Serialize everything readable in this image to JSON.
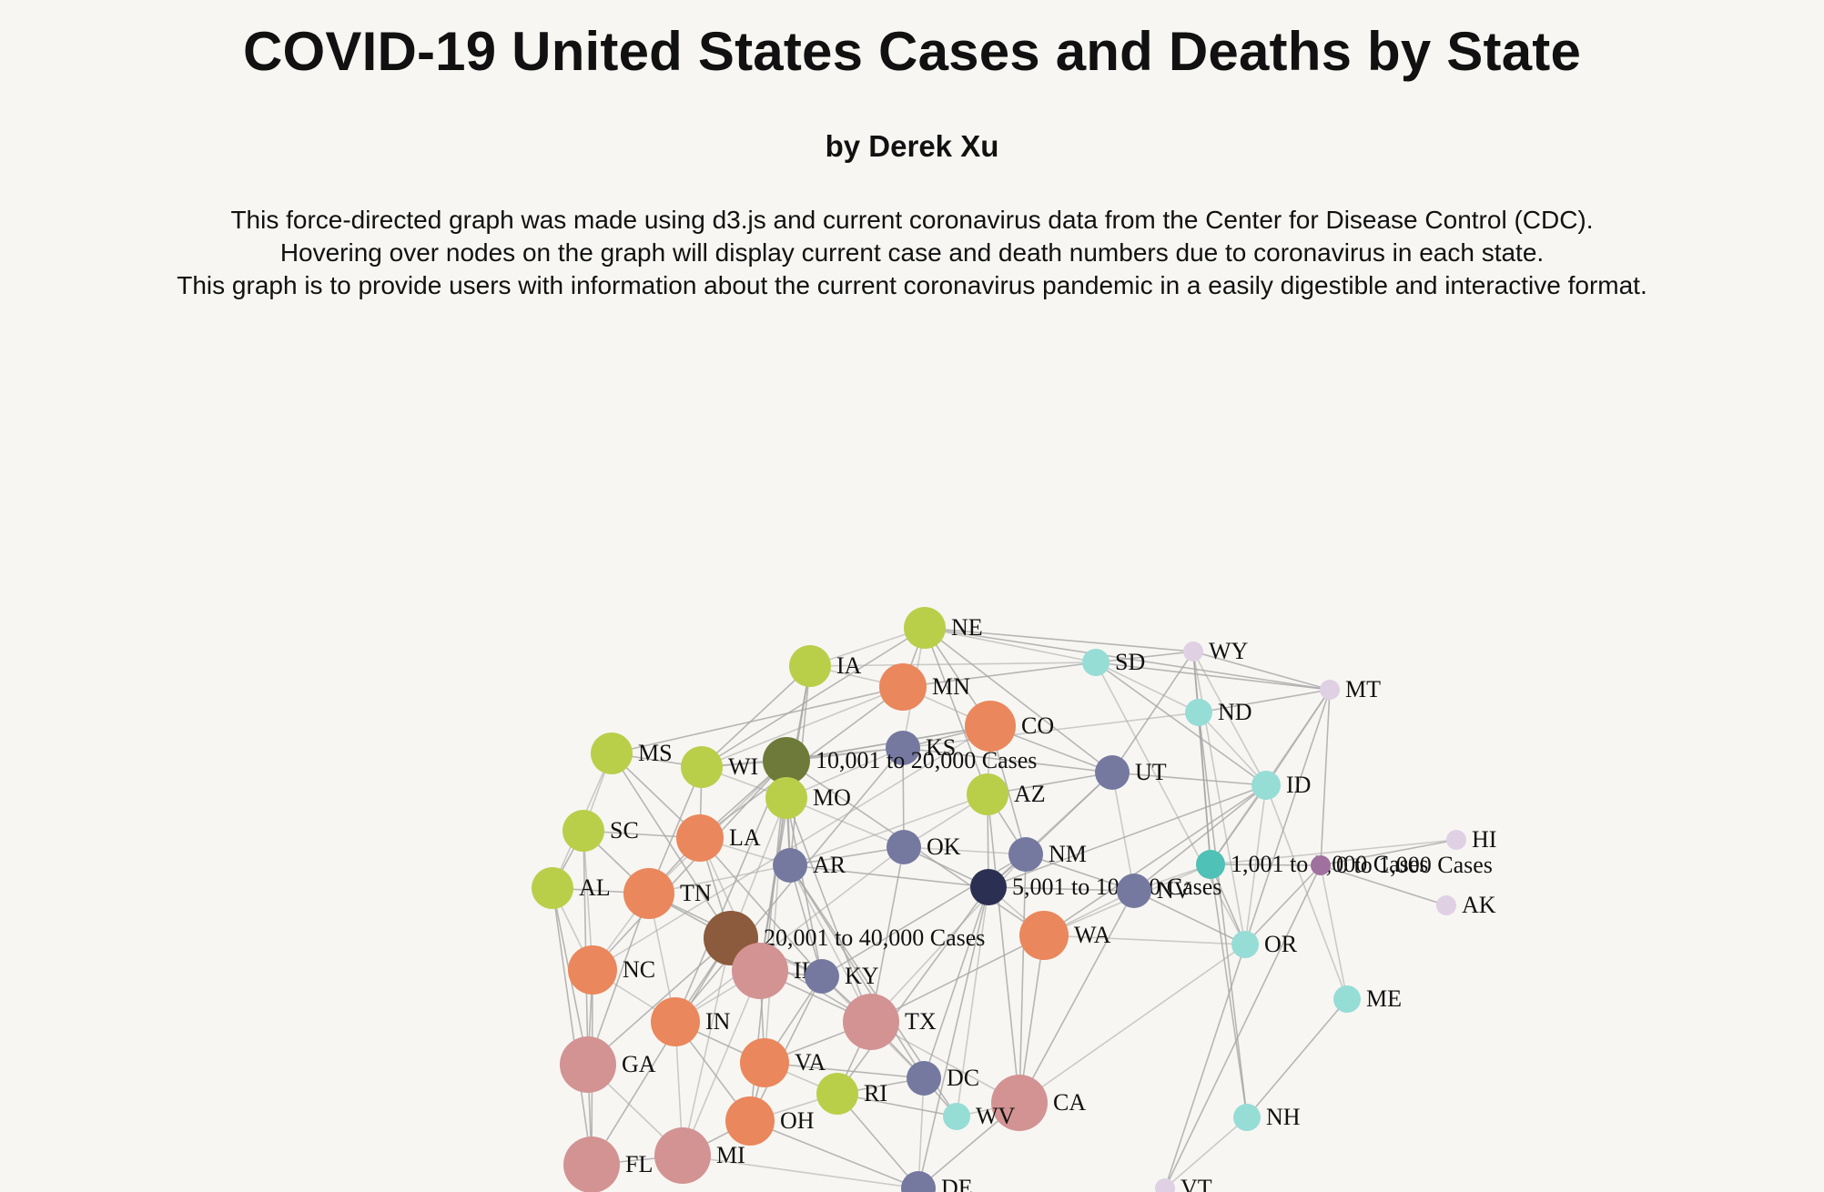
{
  "header": {
    "title": "COVID-19 United States Cases and Deaths by State",
    "byline": "by Derek Xu",
    "description": [
      "This force-directed graph was made using d3.js and current coronavirus data from the Center for Disease Control (CDC).",
      "Hovering over nodes on the graph will display current case and death numbers due to coronavirus in each state.",
      "This graph is to provide users with information about the current coronavirus pandemic in a easily digestible and interactive format."
    ]
  },
  "colors": {
    "tier_40k_plus": "#d39393",
    "tier_20k_40k_hub": "#8c5a3c",
    "tier_10k_20k": "#ea875c",
    "tier_10k_20k_hub": "#6e7a3a",
    "tier_5k_10k": "#b9cf4a",
    "tier_1k_5k": "#7579a0",
    "tier_1k_5k_hub": "#2b3053",
    "tier_small": "#96ddd6",
    "tier_small_hub": "#4fc1b6",
    "tier_smallest": "#e0d0e4",
    "tier_smallest_hub": "#a0709f",
    "edge": "#a6a6a6",
    "background": "#f7f6f2"
  },
  "graph": {
    "nodes": [
      {
        "id": "NE",
        "label": "NE",
        "tier": "tier_5k_10k"
      },
      {
        "id": "IA",
        "label": "IA",
        "tier": "tier_5k_10k"
      },
      {
        "id": "MN",
        "label": "MN",
        "tier": "tier_10k_20k"
      },
      {
        "id": "SD",
        "label": "SD",
        "tier": "tier_small"
      },
      {
        "id": "WY",
        "label": "WY",
        "tier": "tier_smallest"
      },
      {
        "id": "MT",
        "label": "MT",
        "tier": "tier_smallest"
      },
      {
        "id": "ND",
        "label": "ND",
        "tier": "tier_small"
      },
      {
        "id": "CO",
        "label": "CO",
        "tier": "tier_10k_20k"
      },
      {
        "id": "KS",
        "label": "KS",
        "tier": "tier_1k_5k"
      },
      {
        "id": "MS",
        "label": "MS",
        "tier": "tier_5k_10k"
      },
      {
        "id": "WI",
        "label": "WI",
        "tier": "tier_5k_10k"
      },
      {
        "id": "H10",
        "label": "10,001 to 20,000 Cases",
        "tier": "tier_10k_20k_hub"
      },
      {
        "id": "UT",
        "label": "UT",
        "tier": "tier_1k_5k"
      },
      {
        "id": "ID",
        "label": "ID",
        "tier": "tier_small"
      },
      {
        "id": "MO",
        "label": "MO",
        "tier": "tier_5k_10k"
      },
      {
        "id": "AZ",
        "label": "AZ",
        "tier": "tier_5k_10k"
      },
      {
        "id": "SC",
        "label": "SC",
        "tier": "tier_5k_10k"
      },
      {
        "id": "LA",
        "label": "LA",
        "tier": "tier_10k_20k"
      },
      {
        "id": "OK",
        "label": "OK",
        "tier": "tier_1k_5k"
      },
      {
        "id": "HI",
        "label": "HI",
        "tier": "tier_smallest"
      },
      {
        "id": "NM",
        "label": "NM",
        "tier": "tier_1k_5k"
      },
      {
        "id": "AR",
        "label": "AR",
        "tier": "tier_1k_5k"
      },
      {
        "id": "H1",
        "label": "1,001 to 5,000 Cases",
        "tier": "tier_small_hub"
      },
      {
        "id": "H0",
        "label": "0 to 1,000 Cases",
        "tier": "tier_smallest_hub"
      },
      {
        "id": "AL",
        "label": "AL",
        "tier": "tier_5k_10k"
      },
      {
        "id": "TN",
        "label": "TN",
        "tier": "tier_10k_20k"
      },
      {
        "id": "H5",
        "label": "5,001 to 10,000 Cases",
        "tier": "tier_1k_5k_hub"
      },
      {
        "id": "NV",
        "label": "NV",
        "tier": "tier_1k_5k"
      },
      {
        "id": "AK",
        "label": "AK",
        "tier": "tier_smallest"
      },
      {
        "id": "H20",
        "label": "20,001 to 40,000 Cases",
        "tier": "tier_20k_40k_hub"
      },
      {
        "id": "WA",
        "label": "WA",
        "tier": "tier_10k_20k"
      },
      {
        "id": "OR",
        "label": "OR",
        "tier": "tier_small"
      },
      {
        "id": "NC",
        "label": "NC",
        "tier": "tier_10k_20k"
      },
      {
        "id": "IL",
        "label": "IL",
        "tier": "tier_40k_plus"
      },
      {
        "id": "KY",
        "label": "KY",
        "tier": "tier_1k_5k"
      },
      {
        "id": "ME",
        "label": "ME",
        "tier": "tier_small"
      },
      {
        "id": "TX",
        "label": "TX",
        "tier": "tier_40k_plus"
      },
      {
        "id": "IN",
        "label": "IN",
        "tier": "tier_10k_20k"
      },
      {
        "id": "GA",
        "label": "GA",
        "tier": "tier_40k_plus"
      },
      {
        "id": "VA",
        "label": "VA",
        "tier": "tier_10k_20k"
      },
      {
        "id": "DC",
        "label": "DC",
        "tier": "tier_1k_5k"
      },
      {
        "id": "RI",
        "label": "RI",
        "tier": "tier_5k_10k"
      },
      {
        "id": "CA",
        "label": "CA",
        "tier": "tier_40k_plus"
      },
      {
        "id": "WV",
        "label": "WV",
        "tier": "tier_small"
      },
      {
        "id": "OH",
        "label": "OH",
        "tier": "tier_10k_20k"
      },
      {
        "id": "NH",
        "label": "NH",
        "tier": "tier_small"
      },
      {
        "id": "FL",
        "label": "FL",
        "tier": "tier_40k_plus"
      },
      {
        "id": "MI",
        "label": "MI",
        "tier": "tier_40k_plus"
      },
      {
        "id": "DE",
        "label": "DE",
        "tier": "tier_1k_5k"
      },
      {
        "id": "VT",
        "label": "VT",
        "tier": "tier_smallest"
      }
    ],
    "links": [
      [
        "NE",
        "SD"
      ],
      [
        "NE",
        "WY"
      ],
      [
        "NE",
        "MT"
      ],
      [
        "NE",
        "IA"
      ],
      [
        "NE",
        "MN"
      ],
      [
        "NE",
        "CO"
      ],
      [
        "NE",
        "KS"
      ],
      [
        "NE",
        "AZ"
      ],
      [
        "NE",
        "WI"
      ],
      [
        "IA",
        "MN"
      ],
      [
        "IA",
        "WI"
      ],
      [
        "IA",
        "MO"
      ],
      [
        "IA",
        "SD"
      ],
      [
        "IA",
        "IL"
      ],
      [
        "IA",
        "AR"
      ],
      [
        "MN",
        "CO"
      ],
      [
        "MN",
        "SD"
      ],
      [
        "MN",
        "MS"
      ],
      [
        "MN",
        "WI"
      ],
      [
        "MN",
        "LA"
      ],
      [
        "SD",
        "WY"
      ],
      [
        "SD",
        "ND"
      ],
      [
        "SD",
        "MT"
      ],
      [
        "SD",
        "ID"
      ],
      [
        "SD",
        "OR"
      ],
      [
        "WY",
        "MT"
      ],
      [
        "WY",
        "ND"
      ],
      [
        "WY",
        "ID"
      ],
      [
        "WY",
        "UT"
      ],
      [
        "WY",
        "H1"
      ],
      [
        "WY",
        "OR"
      ],
      [
        "MT",
        "ND"
      ],
      [
        "MT",
        "ID"
      ],
      [
        "MT",
        "H1"
      ],
      [
        "MT",
        "H0"
      ],
      [
        "MT",
        "OR"
      ],
      [
        "ND",
        "ID"
      ],
      [
        "ND",
        "H1"
      ],
      [
        "ND",
        "NH"
      ],
      [
        "ND",
        "KS"
      ],
      [
        "CO",
        "UT"
      ],
      [
        "CO",
        "KS"
      ],
      [
        "CO",
        "AZ"
      ],
      [
        "CO",
        "NM"
      ],
      [
        "CO",
        "H10"
      ],
      [
        "CO",
        "NC"
      ],
      [
        "KS",
        "H10"
      ],
      [
        "KS",
        "OK"
      ],
      [
        "KS",
        "MO"
      ],
      [
        "KS",
        "UT"
      ],
      [
        "KS",
        "IN"
      ],
      [
        "MS",
        "SC"
      ],
      [
        "MS",
        "WI"
      ],
      [
        "MS",
        "LA"
      ],
      [
        "MS",
        "AL"
      ],
      [
        "MS",
        "H20"
      ],
      [
        "WI",
        "H10"
      ],
      [
        "WI",
        "MO"
      ],
      [
        "WI",
        "LA"
      ],
      [
        "WI",
        "TN"
      ],
      [
        "WI",
        "KS"
      ],
      [
        "H10",
        "MO"
      ],
      [
        "H10",
        "LA"
      ],
      [
        "H10",
        "TN"
      ],
      [
        "H10",
        "NC"
      ],
      [
        "H10",
        "IN"
      ],
      [
        "H10",
        "VA"
      ],
      [
        "H10",
        "OH"
      ],
      [
        "H10",
        "WA"
      ],
      [
        "H10",
        "CO"
      ],
      [
        "H10",
        "AR"
      ],
      [
        "UT",
        "AZ"
      ],
      [
        "UT",
        "NV"
      ],
      [
        "UT",
        "ID"
      ],
      [
        "UT",
        "NM"
      ],
      [
        "UT",
        "H5"
      ],
      [
        "UT",
        "NE"
      ],
      [
        "ID",
        "NV"
      ],
      [
        "ID",
        "OR"
      ],
      [
        "ID",
        "H1"
      ],
      [
        "ID",
        "H5"
      ],
      [
        "ID",
        "ME"
      ],
      [
        "ID",
        "WA"
      ],
      [
        "MO",
        "AR"
      ],
      [
        "MO",
        "OK"
      ],
      [
        "MO",
        "KY"
      ],
      [
        "MO",
        "IL"
      ],
      [
        "MO",
        "H20"
      ],
      [
        "MO",
        "TX"
      ],
      [
        "AZ",
        "NM"
      ],
      [
        "AZ",
        "OK"
      ],
      [
        "AZ",
        "H5"
      ],
      [
        "AZ",
        "CA"
      ],
      [
        "AZ",
        "AR"
      ],
      [
        "SC",
        "AL"
      ],
      [
        "SC",
        "TN"
      ],
      [
        "SC",
        "NC"
      ],
      [
        "SC",
        "GA"
      ],
      [
        "SC",
        "LA"
      ],
      [
        "LA",
        "AR"
      ],
      [
        "LA",
        "TN"
      ],
      [
        "LA",
        "H20"
      ],
      [
        "LA",
        "IL"
      ],
      [
        "LA",
        "KY"
      ],
      [
        "OK",
        "AR"
      ],
      [
        "OK",
        "NM"
      ],
      [
        "OK",
        "TX"
      ],
      [
        "OK",
        "H5"
      ],
      [
        "OK",
        "IN"
      ],
      [
        "HI",
        "H0"
      ],
      [
        "AK",
        "H0"
      ],
      [
        "HI",
        "H1"
      ],
      [
        "NM",
        "H5"
      ],
      [
        "NM",
        "NV"
      ],
      [
        "NM",
        "TX"
      ],
      [
        "NM",
        "CA"
      ],
      [
        "NM",
        "KY"
      ],
      [
        "AR",
        "TN"
      ],
      [
        "AR",
        "KY"
      ],
      [
        "AR",
        "H5"
      ],
      [
        "AR",
        "TX"
      ],
      [
        "AR",
        "DC"
      ],
      [
        "AR",
        "WV"
      ],
      [
        "H1",
        "NV"
      ],
      [
        "H1",
        "OR"
      ],
      [
        "H1",
        "H0"
      ],
      [
        "H1",
        "WA"
      ],
      [
        "H1",
        "NH"
      ],
      [
        "H0",
        "OR"
      ],
      [
        "H0",
        "ME"
      ],
      [
        "H0",
        "VT"
      ],
      [
        "AL",
        "TN"
      ],
      [
        "AL",
        "NC"
      ],
      [
        "AL",
        "GA"
      ],
      [
        "AL",
        "FL"
      ],
      [
        "TN",
        "NC"
      ],
      [
        "TN",
        "H20"
      ],
      [
        "TN",
        "KY"
      ],
      [
        "TN",
        "IN"
      ],
      [
        "TN",
        "GA"
      ],
      [
        "H5",
        "NV"
      ],
      [
        "H5",
        "WA"
      ],
      [
        "H5",
        "DC"
      ],
      [
        "H5",
        "DE"
      ],
      [
        "H5",
        "WV"
      ],
      [
        "H5",
        "RI"
      ],
      [
        "NV",
        "OR"
      ],
      [
        "NV",
        "WA"
      ],
      [
        "NV",
        "CA"
      ],
      [
        "H20",
        "IL"
      ],
      [
        "H20",
        "KY"
      ],
      [
        "H20",
        "TX"
      ],
      [
        "H20",
        "IN"
      ],
      [
        "H20",
        "MI"
      ],
      [
        "H20",
        "GA"
      ],
      [
        "H20",
        "FL"
      ],
      [
        "WA",
        "OR"
      ],
      [
        "WA",
        "CA"
      ],
      [
        "WA",
        "TX"
      ],
      [
        "OR",
        "CA"
      ],
      [
        "OR",
        "VT"
      ],
      [
        "NC",
        "GA"
      ],
      [
        "NC",
        "IN"
      ],
      [
        "NC",
        "FL"
      ],
      [
        "IL",
        "KY"
      ],
      [
        "IL",
        "IN"
      ],
      [
        "IL",
        "TX"
      ],
      [
        "IL",
        "VA"
      ],
      [
        "IL",
        "MI"
      ],
      [
        "KY",
        "TX"
      ],
      [
        "KY",
        "VA"
      ],
      [
        "KY",
        "DC"
      ],
      [
        "KY",
        "OH"
      ],
      [
        "ME",
        "NH"
      ],
      [
        "NH",
        "VT"
      ],
      [
        "TX",
        "DC"
      ],
      [
        "TX",
        "VA"
      ],
      [
        "TX",
        "CA"
      ],
      [
        "TX",
        "RI"
      ],
      [
        "IN",
        "OH"
      ],
      [
        "IN",
        "MI"
      ],
      [
        "IN",
        "VA"
      ],
      [
        "GA",
        "FL"
      ],
      [
        "GA",
        "MI"
      ],
      [
        "VA",
        "DC"
      ],
      [
        "VA",
        "OH"
      ],
      [
        "VA",
        "RI"
      ],
      [
        "DC",
        "RI"
      ],
      [
        "DC",
        "WV"
      ],
      [
        "DC",
        "DE"
      ],
      [
        "RI",
        "WV"
      ],
      [
        "RI",
        "DE"
      ],
      [
        "CA",
        "WV"
      ],
      [
        "CA",
        "DE"
      ],
      [
        "OH",
        "MI"
      ],
      [
        "OH",
        "RI"
      ],
      [
        "OH",
        "DE"
      ],
      [
        "FL",
        "MI"
      ],
      [
        "MI",
        "DE"
      ]
    ]
  }
}
